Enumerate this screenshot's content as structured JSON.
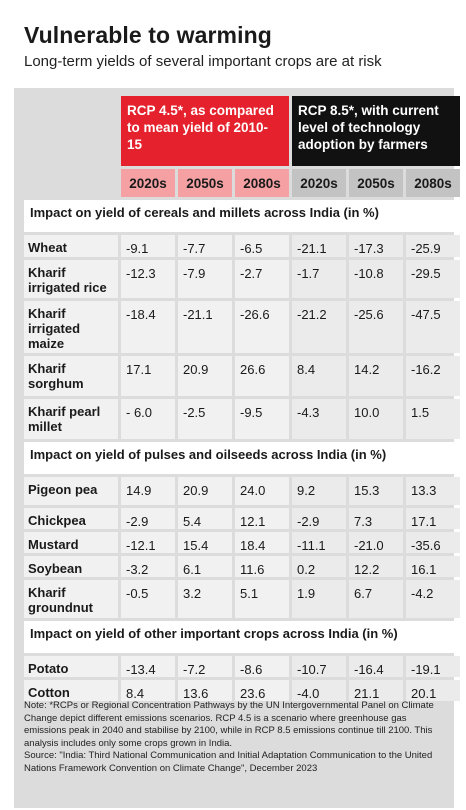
{
  "title": "Vulnerable to warming",
  "subtitle": "Long-term yields of several important crops are at risk",
  "headers": {
    "rcp45": "RCP 4.5*, as compared to mean yield of 2010-15",
    "rcp85": "RCP 8.5*, with current level of technology adoption by farmers",
    "decades": [
      "2020s",
      "2050s",
      "2080s",
      "2020s",
      "2050s",
      "2080s"
    ]
  },
  "sections": [
    {
      "title": "Impact on yield of cereals and millets across India (in %)",
      "rows": [
        {
          "crop": "Wheat",
          "values": [
            "-9.1",
            "-7.7",
            "-6.5",
            "-21.1",
            "-17.3",
            "-25.9"
          ]
        },
        {
          "crop": "Kharif irrigated rice",
          "values": [
            "-12.3",
            "-7.9",
            "-2.7",
            "-1.7",
            "-10.8",
            "-29.5"
          ]
        },
        {
          "crop": "Kharif irrigated maize",
          "values": [
            "-18.4",
            "-21.1",
            "-26.6",
            "-21.2",
            "-25.6",
            "-47.5"
          ]
        },
        {
          "crop": "Kharif sorghum",
          "values": [
            "17.1",
            "20.9",
            "26.6",
            "8.4",
            "14.2",
            "-16.2"
          ]
        },
        {
          "crop": "Kharif pearl millet",
          "values": [
            "- 6.0",
            "-2.5",
            "-9.5",
            "-4.3",
            "10.0",
            "1.5"
          ]
        }
      ]
    },
    {
      "title": "Impact on yield of pulses and oilseeds across India (in %)",
      "rows": [
        {
          "crop": "Pigeon pea",
          "values": [
            "14.9",
            "20.9",
            "24.0",
            "9.2",
            "15.3",
            "13.3"
          ]
        },
        {
          "crop": "Chickpea",
          "values": [
            "-2.9",
            "5.4",
            "12.1",
            "-2.9",
            "7.3",
            "17.1"
          ]
        },
        {
          "crop": "Mustard",
          "values": [
            "-12.1",
            "15.4",
            "18.4",
            "-11.1",
            "-21.0",
            "-35.6"
          ]
        },
        {
          "crop": "Soybean",
          "values": [
            "-3.2",
            "6.1",
            "11.6",
            "0.2",
            "12.2",
            "16.1"
          ]
        },
        {
          "crop": "Kharif groundnut",
          "values": [
            "-0.5",
            "3.2",
            "5.1",
            "1.9",
            "6.7",
            "-4.2"
          ]
        }
      ]
    },
    {
      "title": "Impact on yield of other important crops across India (in %)",
      "rows": [
        {
          "crop": "Potato",
          "values": [
            "-13.4",
            "-7.2",
            "-8.6",
            "-10.7",
            "-16.4",
            "-19.1"
          ]
        },
        {
          "crop": "Cotton",
          "values": [
            "8.4",
            "13.6",
            "23.6",
            "-4.0",
            "21.1",
            "20.1"
          ]
        }
      ]
    }
  ],
  "note": "Note: *RCPs or Regional Concentration Pathways by the UN Intergovernmental Panel on Climate Change depict different emissions scenarios. RCP 4.5 is a scenario where greenhouse gas emissions peak in 2040 and stabilise by 2100, while in RCP 8.5 emissions continue till 2100. This analysis includes only some crops grown in India.",
  "source": "Source: \"India: Third National Communication and Initial Adaptation Communication to the United Nations Framework Convention on Climate Change\", December 2023"
}
